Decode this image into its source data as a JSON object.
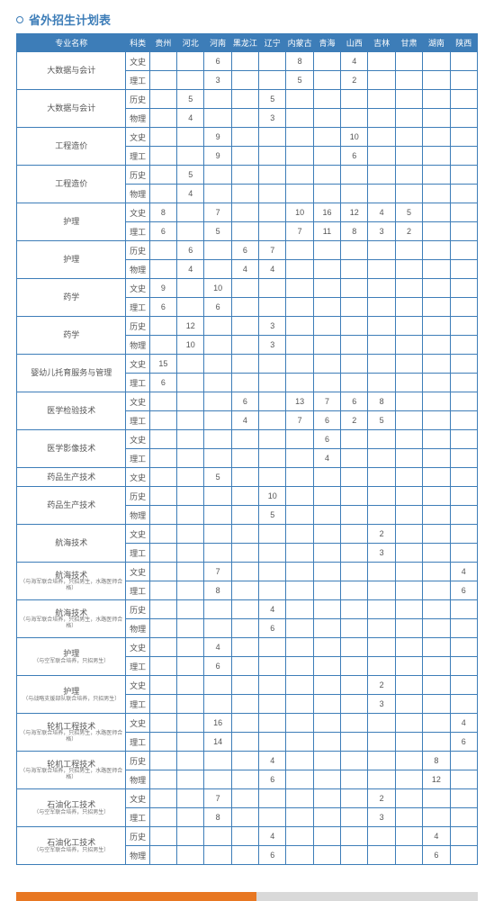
{
  "title": "省外招生计划表",
  "columns": [
    "专业名称",
    "科类",
    "贵州",
    "河北",
    "河南",
    "黑龙江",
    "辽宁",
    "内蒙古",
    "青海",
    "山西",
    "吉林",
    "甘肃",
    "湖南",
    "陕西"
  ],
  "rows": [
    {
      "major": "大数据与会计",
      "sub": "",
      "t1": "文史",
      "v1": [
        "",
        "",
        "6",
        "",
        "",
        "8",
        "",
        "4",
        "",
        "",
        "",
        ""
      ],
      "t2": "理工",
      "v2": [
        "",
        "",
        "3",
        "",
        "",
        "5",
        "",
        "2",
        "",
        "",
        "",
        ""
      ]
    },
    {
      "major": "大数据与会计",
      "sub": "",
      "t1": "历史",
      "v1": [
        "",
        "5",
        "",
        "",
        "5",
        "",
        "",
        "",
        "",
        "",
        "",
        ""
      ],
      "t2": "物理",
      "v2": [
        "",
        "4",
        "",
        "",
        "3",
        "",
        "",
        "",
        "",
        "",
        "",
        ""
      ]
    },
    {
      "major": "工程造价",
      "sub": "",
      "t1": "文史",
      "v1": [
        "",
        "",
        "9",
        "",
        "",
        "",
        "",
        "10",
        "",
        "",
        "",
        ""
      ],
      "t2": "理工",
      "v2": [
        "",
        "",
        "9",
        "",
        "",
        "",
        "",
        "6",
        "",
        "",
        "",
        ""
      ]
    },
    {
      "major": "工程造价",
      "sub": "",
      "t1": "历史",
      "v1": [
        "",
        "5",
        "",
        "",
        "",
        "",
        "",
        "",
        "",
        "",
        "",
        ""
      ],
      "t2": "物理",
      "v2": [
        "",
        "4",
        "",
        "",
        "",
        "",
        "",
        "",
        "",
        "",
        "",
        ""
      ]
    },
    {
      "major": "护理",
      "sub": "",
      "t1": "文史",
      "v1": [
        "8",
        "",
        "7",
        "",
        "",
        "10",
        "16",
        "12",
        "4",
        "5",
        "",
        ""
      ],
      "t2": "理工",
      "v2": [
        "6",
        "",
        "5",
        "",
        "",
        "7",
        "11",
        "8",
        "3",
        "2",
        "",
        ""
      ]
    },
    {
      "major": "护理",
      "sub": "",
      "t1": "历史",
      "v1": [
        "",
        "6",
        "",
        "6",
        "7",
        "",
        "",
        "",
        "",
        "",
        "",
        ""
      ],
      "t2": "物理",
      "v2": [
        "",
        "4",
        "",
        "4",
        "4",
        "",
        "",
        "",
        "",
        "",
        "",
        ""
      ]
    },
    {
      "major": "药学",
      "sub": "",
      "t1": "文史",
      "v1": [
        "9",
        "",
        "10",
        "",
        "",
        "",
        "",
        "",
        "",
        "",
        "",
        ""
      ],
      "t2": "理工",
      "v2": [
        "6",
        "",
        "6",
        "",
        "",
        "",
        "",
        "",
        "",
        "",
        "",
        ""
      ]
    },
    {
      "major": "药学",
      "sub": "",
      "t1": "历史",
      "v1": [
        "",
        "12",
        "",
        "",
        "3",
        "",
        "",
        "",
        "",
        "",
        "",
        ""
      ],
      "t2": "物理",
      "v2": [
        "",
        "10",
        "",
        "",
        "3",
        "",
        "",
        "",
        "",
        "",
        "",
        ""
      ]
    },
    {
      "major": "婴幼儿托育服务与管理",
      "sub": "",
      "t1": "文史",
      "v1": [
        "15",
        "",
        "",
        "",
        "",
        "",
        "",
        "",
        "",
        "",
        "",
        ""
      ],
      "t2": "理工",
      "v2": [
        "6",
        "",
        "",
        "",
        "",
        "",
        "",
        "",
        "",
        "",
        "",
        ""
      ]
    },
    {
      "major": "医学检验技术",
      "sub": "",
      "t1": "文史",
      "v1": [
        "",
        "",
        "",
        "6",
        "",
        "13",
        "7",
        "6",
        "8",
        "",
        "",
        ""
      ],
      "t2": "理工",
      "v2": [
        "",
        "",
        "",
        "4",
        "",
        "7",
        "6",
        "2",
        "5",
        "",
        "",
        ""
      ]
    },
    {
      "major": "医学影像技术",
      "sub": "",
      "t1": "文史",
      "v1": [
        "",
        "",
        "",
        "",
        "",
        "",
        "6",
        "",
        "",
        "",
        "",
        ""
      ],
      "t2": "理工",
      "v2": [
        "",
        "",
        "",
        "",
        "",
        "",
        "4",
        "",
        "",
        "",
        "",
        ""
      ]
    },
    {
      "major": "药品生产技术",
      "sub": "",
      "t1": "文史",
      "v1": [
        "",
        "",
        "5",
        "",
        "",
        "",
        "",
        "",
        "",
        "",
        "",
        ""
      ],
      "t2": "",
      "v2": null
    },
    {
      "major": "药品生产技术",
      "sub": "",
      "t1": "历史",
      "v1": [
        "",
        "",
        "",
        "",
        "10",
        "",
        "",
        "",
        "",
        "",
        "",
        ""
      ],
      "t2": "物理",
      "v2": [
        "",
        "",
        "",
        "",
        "5",
        "",
        "",
        "",
        "",
        "",
        "",
        ""
      ]
    },
    {
      "major": "航海技术",
      "sub": "",
      "t1": "文史",
      "v1": [
        "",
        "",
        "",
        "",
        "",
        "",
        "",
        "",
        "2",
        "",
        "",
        ""
      ],
      "t2": "理工",
      "v2": [
        "",
        "",
        "",
        "",
        "",
        "",
        "",
        "",
        "3",
        "",
        "",
        ""
      ]
    },
    {
      "major": "航海技术",
      "sub": "（与海军联合培养，只招男生，水路医师合格）",
      "t1": "文史",
      "v1": [
        "",
        "",
        "7",
        "",
        "",
        "",
        "",
        "",
        "",
        "",
        "",
        "4"
      ],
      "t2": "理工",
      "v2": [
        "",
        "",
        "8",
        "",
        "",
        "",
        "",
        "",
        "",
        "",
        "",
        "6"
      ]
    },
    {
      "major": "航海技术",
      "sub": "（与海军联合培养，只招男生，水路医师合格）",
      "t1": "历史",
      "v1": [
        "",
        "",
        "",
        "",
        "4",
        "",
        "",
        "",
        "",
        "",
        "",
        ""
      ],
      "t2": "物理",
      "v2": [
        "",
        "",
        "",
        "",
        "6",
        "",
        "",
        "",
        "",
        "",
        "",
        ""
      ]
    },
    {
      "major": "护理",
      "sub": "（与空军联合培养，只招男生）",
      "t1": "文史",
      "v1": [
        "",
        "",
        "4",
        "",
        "",
        "",
        "",
        "",
        "",
        "",
        "",
        ""
      ],
      "t2": "理工",
      "v2": [
        "",
        "",
        "6",
        "",
        "",
        "",
        "",
        "",
        "",
        "",
        "",
        ""
      ]
    },
    {
      "major": "护理",
      "sub": "（与战略支援部队联合培养，只招男生）",
      "t1": "文史",
      "v1": [
        "",
        "",
        "",
        "",
        "",
        "",
        "",
        "",
        "2",
        "",
        "",
        ""
      ],
      "t2": "理工",
      "v2": [
        "",
        "",
        "",
        "",
        "",
        "",
        "",
        "",
        "3",
        "",
        "",
        ""
      ]
    },
    {
      "major": "轮机工程技术",
      "sub": "（与海军联合培养，只招男生，水路医师合格）",
      "t1": "文史",
      "v1": [
        "",
        "",
        "16",
        "",
        "",
        "",
        "",
        "",
        "",
        "",
        "",
        "4"
      ],
      "t2": "理工",
      "v2": [
        "",
        "",
        "14",
        "",
        "",
        "",
        "",
        "",
        "",
        "",
        "",
        "6"
      ]
    },
    {
      "major": "轮机工程技术",
      "sub": "（与海军联合培养，只招男生，水路医师合格）",
      "t1": "历史",
      "v1": [
        "",
        "",
        "",
        "",
        "4",
        "",
        "",
        "",
        "",
        "",
        "8",
        ""
      ],
      "t2": "物理",
      "v2": [
        "",
        "",
        "",
        "",
        "6",
        "",
        "",
        "",
        "",
        "",
        "12",
        ""
      ]
    },
    {
      "major": "石油化工技术",
      "sub": "（与空军联合培养，只招男生）",
      "t1": "文史",
      "v1": [
        "",
        "",
        "7",
        "",
        "",
        "",
        "",
        "",
        "2",
        "",
        "",
        ""
      ],
      "t2": "理工",
      "v2": [
        "",
        "",
        "8",
        "",
        "",
        "",
        "",
        "",
        "3",
        "",
        "",
        ""
      ]
    },
    {
      "major": "石油化工技术",
      "sub": "（与空军联合培养，只招男生）",
      "t1": "历史",
      "v1": [
        "",
        "",
        "",
        "",
        "4",
        "",
        "",
        "",
        "",
        "",
        "4",
        ""
      ],
      "t2": "物理",
      "v2": [
        "",
        "",
        "",
        "",
        "6",
        "",
        "",
        "",
        "",
        "",
        "6",
        ""
      ]
    }
  ]
}
